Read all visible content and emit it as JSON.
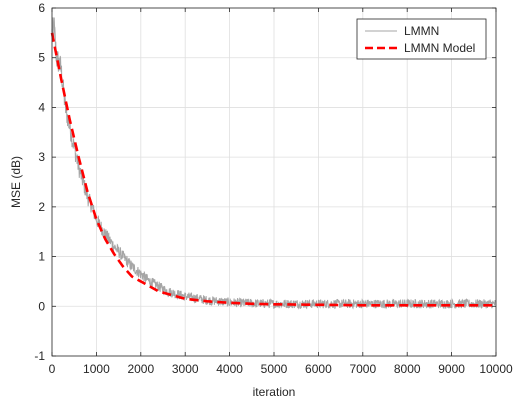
{
  "chart_data": {
    "type": "line",
    "xlabel": "iteration",
    "ylabel": "MSE (dB)",
    "xlim": [
      0,
      10000
    ],
    "ylim": [
      -1,
      6
    ],
    "xticks": [
      "0",
      "1000",
      "2000",
      "3000",
      "4000",
      "5000",
      "6000",
      "7000",
      "8000",
      "9000",
      "10000"
    ],
    "yticks": [
      "-1",
      "0",
      "1",
      "2",
      "3",
      "4",
      "5",
      "6"
    ],
    "grid": true,
    "legend_position": "top-right",
    "series": [
      {
        "name": "LMMN",
        "style": "solid",
        "color": "#a6a6a6",
        "x": [
          0,
          50,
          100,
          200,
          300,
          400,
          500,
          600,
          700,
          800,
          900,
          1000,
          1200,
          1400,
          1600,
          1800,
          2000,
          2200,
          2400,
          2600,
          2800,
          3000,
          3500,
          4000,
          4500,
          5000,
          6000,
          7000,
          8000,
          9000,
          10000
        ],
        "y": [
          5.5,
          5.6,
          5.0,
          4.8,
          4.0,
          3.6,
          3.2,
          2.8,
          2.5,
          2.2,
          2.0,
          1.75,
          1.45,
          1.2,
          1.0,
          0.8,
          0.65,
          0.5,
          0.4,
          0.3,
          0.25,
          0.2,
          0.12,
          0.08,
          0.06,
          0.05,
          0.05,
          0.05,
          0.05,
          0.05,
          0.05
        ]
      },
      {
        "name": "LMMN Model",
        "style": "dashed",
        "color": "#ff0000",
        "x": [
          0,
          200,
          400,
          600,
          800,
          1000,
          1200,
          1400,
          1600,
          1800,
          2000,
          2200,
          2400,
          2600,
          2800,
          3000,
          3500,
          4000,
          4500,
          5000,
          6000,
          7000,
          8000,
          9000,
          10000
        ],
        "y": [
          5.5,
          4.6,
          3.75,
          3.0,
          2.3,
          1.75,
          1.35,
          1.05,
          0.8,
          0.6,
          0.5,
          0.4,
          0.3,
          0.25,
          0.2,
          0.15,
          0.1,
          0.07,
          0.05,
          0.04,
          0.03,
          0.02,
          0.02,
          0.02,
          0.02
        ]
      }
    ]
  }
}
